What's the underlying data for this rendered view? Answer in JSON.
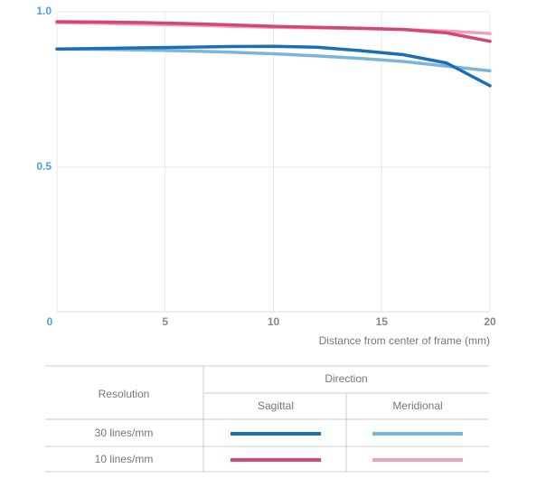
{
  "chart_data": {
    "type": "line",
    "x_label": "Distance from center of frame (mm)",
    "x": [
      0,
      2,
      4,
      6,
      8,
      10,
      12,
      14,
      16,
      18,
      20
    ],
    "xlim": [
      0,
      20
    ],
    "xticks": [
      0,
      5,
      10,
      15,
      20
    ],
    "ylim": [
      0.035,
      1.0
    ],
    "yticks": [
      {
        "value": 1.0,
        "label": "1.0"
      },
      0.5
    ],
    "grid": true,
    "series": [
      {
        "color": "#1a6fb5",
        "values": [
          0.88,
          0.882,
          0.884,
          0.886,
          0.888,
          0.889,
          0.886,
          0.875,
          0.862,
          0.835,
          0.762
        ]
      },
      {
        "color": "#7ab5de",
        "values": [
          0.88,
          0.879,
          0.877,
          0.874,
          0.87,
          0.865,
          0.858,
          0.85,
          0.84,
          0.825,
          0.81
        ]
      },
      {
        "color": "#d6476f",
        "values": [
          0.968,
          0.967,
          0.965,
          0.962,
          0.958,
          0.953,
          0.95,
          0.947,
          0.943,
          0.932,
          0.905
        ]
      },
      {
        "color": "#eea2b6",
        "values": [
          0.965,
          0.963,
          0.96,
          0.957,
          0.953,
          0.95,
          0.948,
          0.946,
          0.943,
          0.938,
          0.93
        ]
      }
    ],
    "legend_table": {
      "row_header": "Resolution",
      "column_group": "Direction",
      "columns": [
        "Sagittal",
        "Meridional"
      ],
      "rows": [
        "30 lines/mm",
        "10 lines/mm"
      ]
    }
  }
}
